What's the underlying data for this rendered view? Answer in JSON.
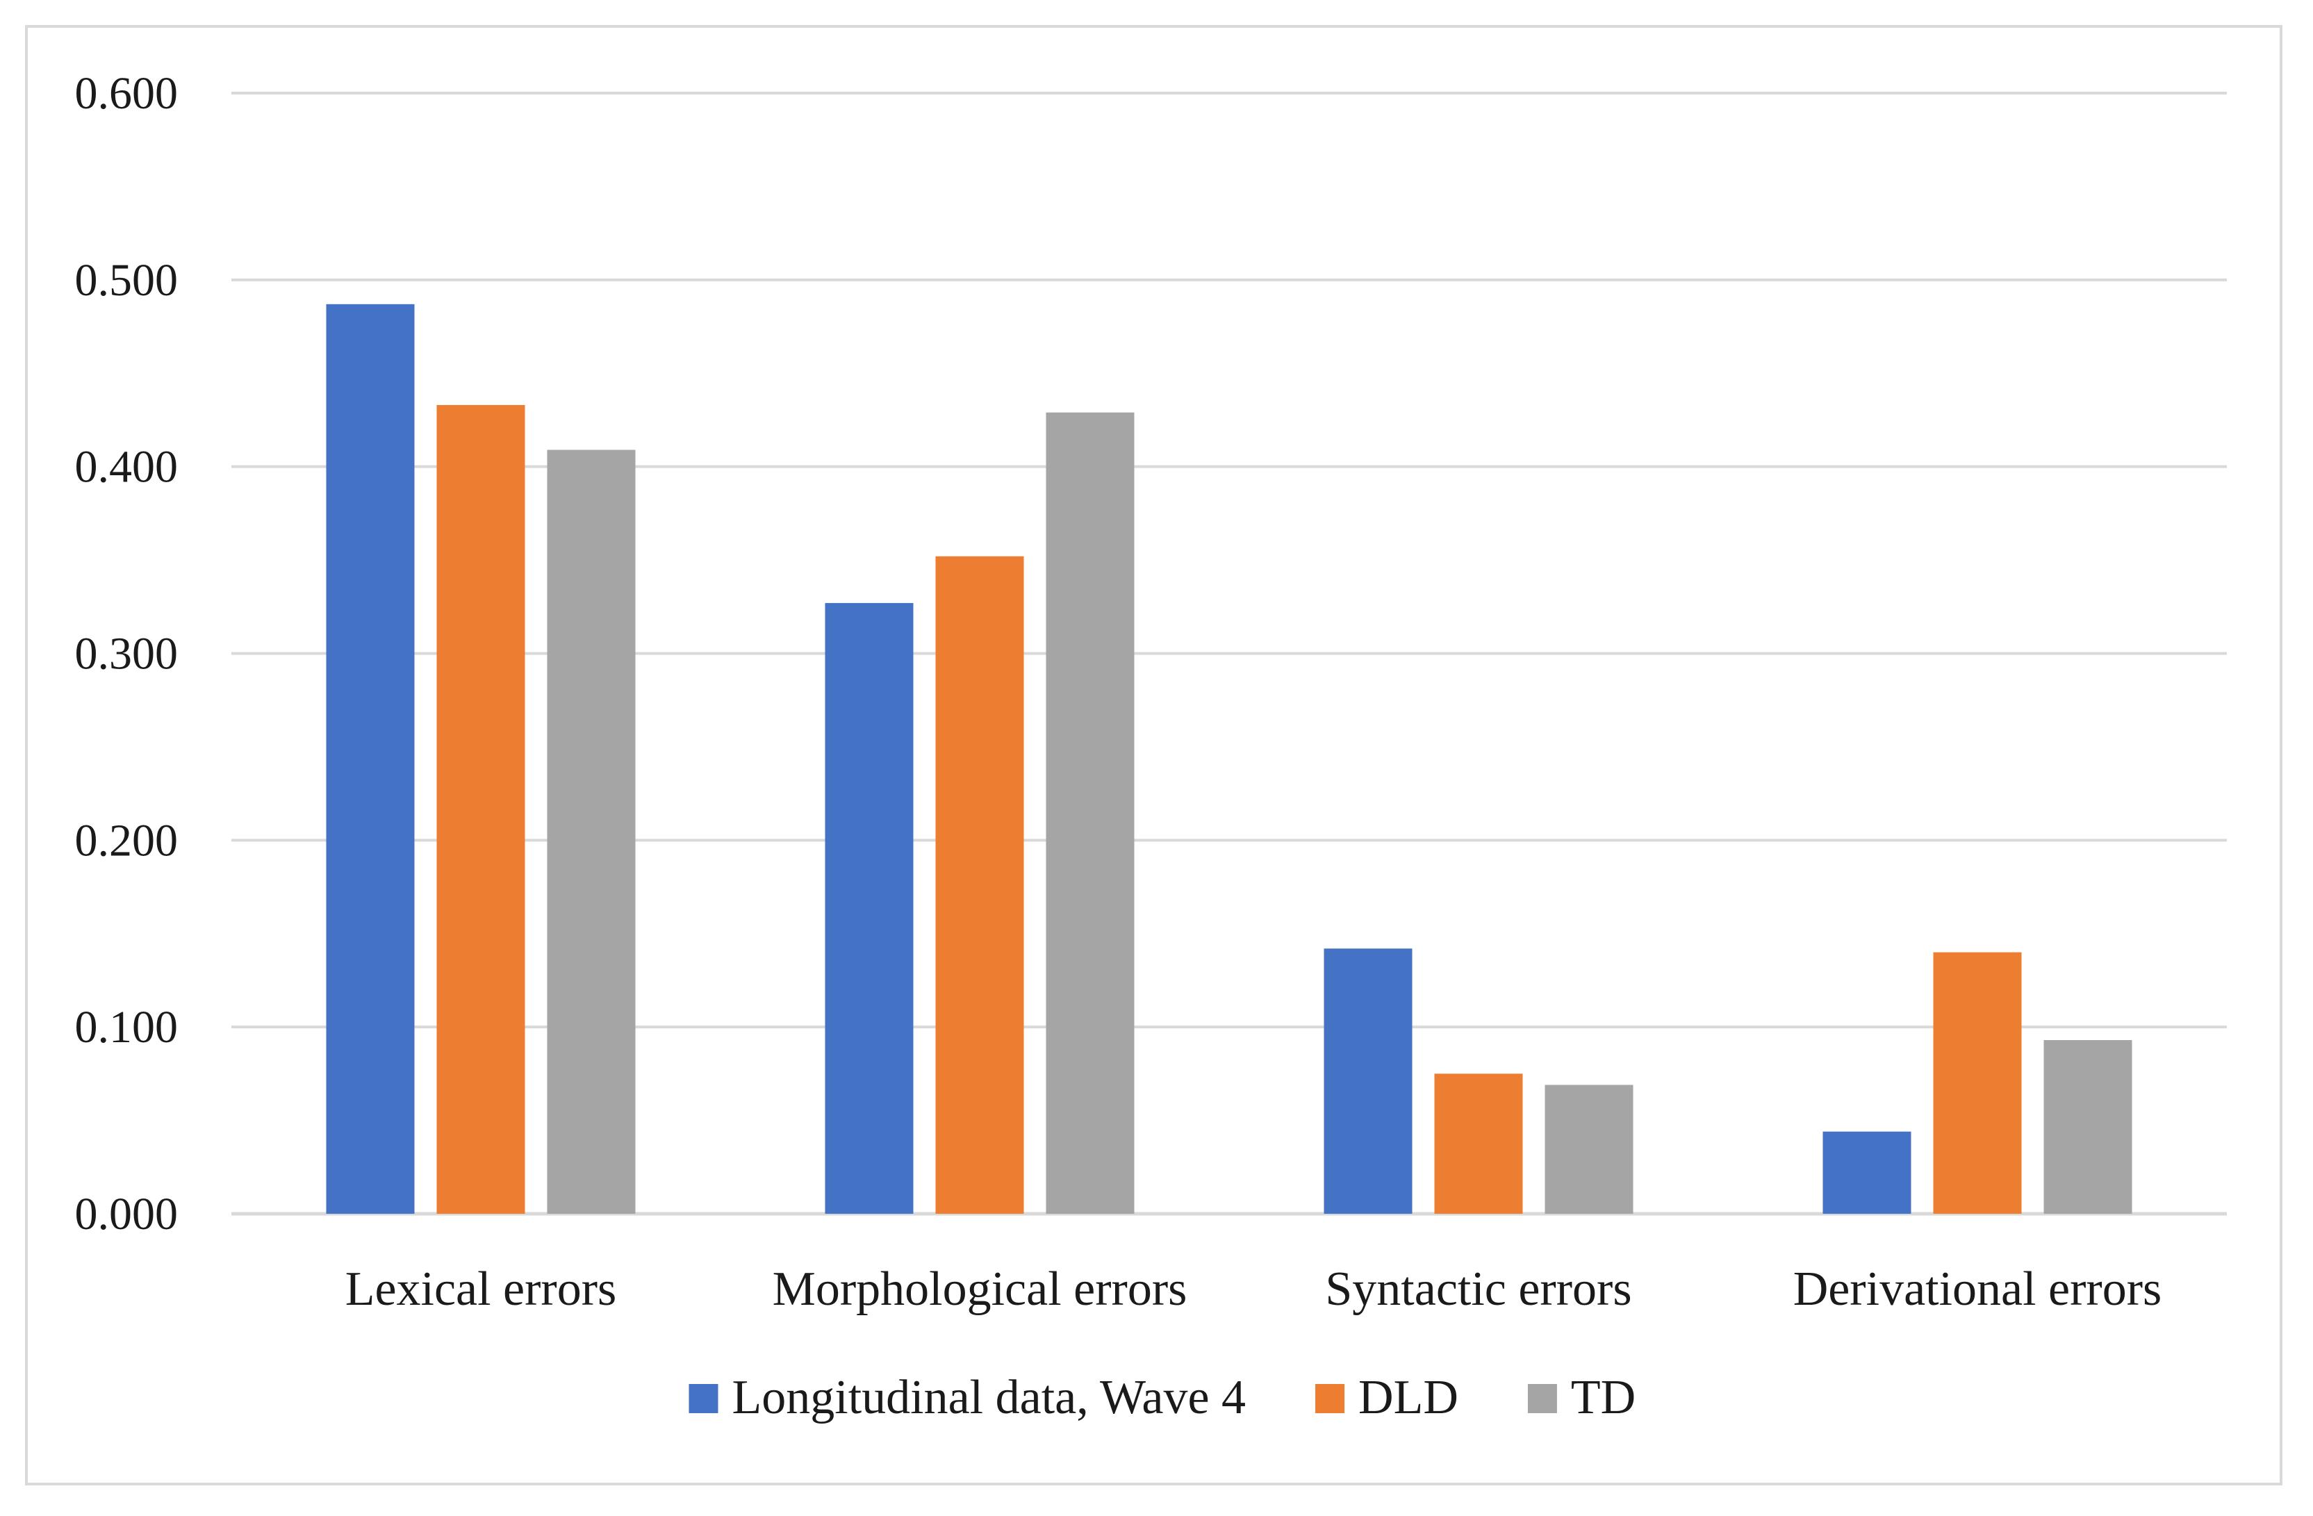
{
  "chart_data": {
    "type": "bar",
    "title": "",
    "xlabel": "",
    "ylabel": "",
    "categories": [
      "Lexical errors",
      "Morphological errors",
      "Syntactic errors",
      "Derivational errors"
    ],
    "series": [
      {
        "name": "Longitudinal data, Wave 4",
        "color": "#4472c4",
        "values": [
          0.487,
          0.327,
          0.142,
          0.044
        ]
      },
      {
        "name": "DLD",
        "color": "#ed7d31",
        "values": [
          0.433,
          0.352,
          0.075,
          0.14
        ]
      },
      {
        "name": "TD",
        "color": "#a5a5a5",
        "values": [
          0.409,
          0.429,
          0.069,
          0.093
        ]
      }
    ],
    "ylim": [
      0,
      0.6
    ],
    "yticks": [
      "0.000",
      "0.100",
      "0.200",
      "0.300",
      "0.400",
      "0.500",
      "0.600"
    ],
    "grid": true,
    "legend_position": "bottom",
    "gridline_color": "#d9d9d9"
  }
}
